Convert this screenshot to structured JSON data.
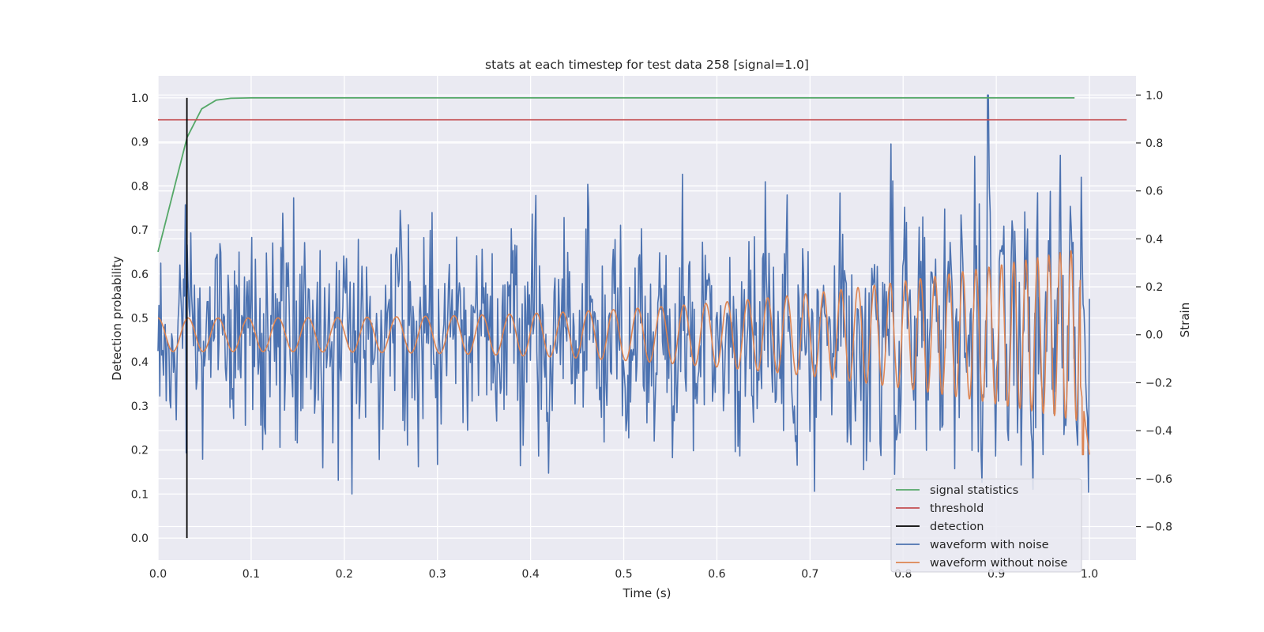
{
  "chart_data": {
    "type": "line",
    "title": "stats at each timestep for test data 258 [signal=1.0]",
    "xlabel": "Time (s)",
    "ylabel_left": "Detection probability",
    "ylabel_right": "Strain",
    "xlim": [
      0.0,
      1.05
    ],
    "ylim_left": [
      -0.05,
      1.05
    ],
    "ylim_right": [
      -0.94,
      1.08
    ],
    "x_ticks": [
      "0.0",
      "0.1",
      "0.2",
      "0.3",
      "0.4",
      "0.5",
      "0.6",
      "0.7",
      "0.8",
      "0.9",
      "1.0"
    ],
    "left_ticks": [
      "0.0",
      "0.1",
      "0.2",
      "0.3",
      "0.4",
      "0.5",
      "0.6",
      "0.7",
      "0.8",
      "0.9",
      "1.0"
    ],
    "right_ticks": [
      "−0.8",
      "−0.6",
      "−0.4",
      "−0.2",
      "0.0",
      "0.2",
      "0.4",
      "0.6",
      "0.8",
      "1.0"
    ],
    "grid": true,
    "legend_position": "lower-right",
    "colors": {
      "background": "#eaeaf2",
      "grid": "#ffffff",
      "signal_statistics": "#55a868",
      "threshold": "#c44e52",
      "detection": "#000000",
      "waveform_with_noise": "#4c72b0",
      "waveform_without_noise": "#dd8452"
    },
    "series": [
      {
        "name": "signal statistics",
        "axis": "left",
        "x": [
          0.0,
          0.0156,
          0.0312,
          0.0469,
          0.0625,
          0.0781,
          0.1,
          0.2,
          0.3,
          0.4,
          0.5,
          0.6,
          0.7,
          0.8,
          0.9,
          0.984
        ],
        "y": [
          0.65,
          0.78,
          0.91,
          0.975,
          0.995,
          0.999,
          1.0,
          1.0,
          1.0,
          1.0,
          1.0,
          1.0,
          1.0,
          1.0,
          1.0,
          1.0
        ]
      },
      {
        "name": "threshold",
        "axis": "left",
        "x": [
          0.0,
          1.04
        ],
        "y": [
          0.95,
          0.95
        ]
      },
      {
        "name": "detection",
        "axis": "left",
        "x": [
          0.031,
          0.031
        ],
        "y": [
          0.0,
          1.0
        ]
      },
      {
        "name": "waveform with noise",
        "axis": "right",
        "x_range": [
          0.0,
          1.0
        ],
        "samples": 1024,
        "approx_range": [
          -0.85,
          1.0
        ],
        "max": {
          "x": 0.891,
          "y": 1.0
        }
      },
      {
        "name": "waveform without noise",
        "axis": "right",
        "x_range": [
          0.0,
          1.0
        ],
        "amplitude_start": 0.07,
        "amplitude_end": 0.37,
        "frequency_start_hz": 31,
        "frequency_end_hz": 90,
        "min": {
          "x": 0.993,
          "y": -0.5
        }
      }
    ]
  }
}
